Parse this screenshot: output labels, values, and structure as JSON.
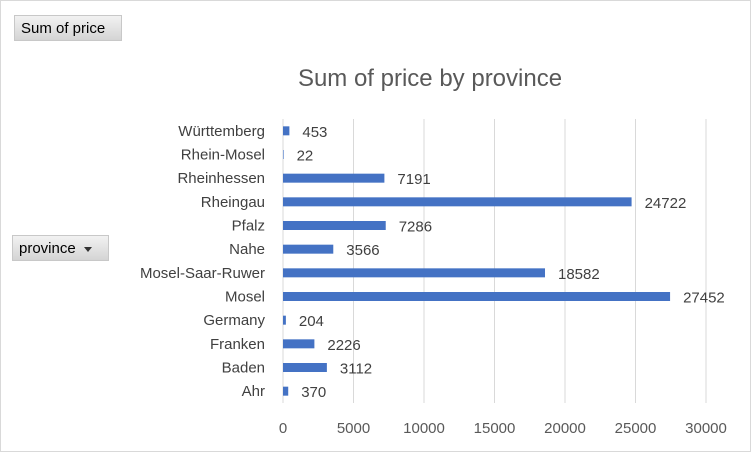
{
  "buttons": {
    "value_field": "Sum of price",
    "row_field": "province"
  },
  "chart_data": {
    "type": "bar",
    "orientation": "horizontal",
    "title": "Sum of price by province",
    "categories": [
      "Württemberg",
      "Rhein-Mosel",
      "Rheinhessen",
      "Rheingau",
      "Pfalz",
      "Nahe",
      "Mosel-Saar-Ruwer",
      "Mosel",
      "Germany",
      "Franken",
      "Baden",
      "Ahr"
    ],
    "values": [
      453,
      22,
      7191,
      24722,
      7286,
      3566,
      18582,
      27452,
      204,
      2226,
      3112,
      370
    ],
    "xlim": [
      0,
      30000
    ],
    "xticks": [
      0,
      5000,
      10000,
      15000,
      20000,
      25000,
      30000
    ],
    "grid": true,
    "bar_color": "#4472c4",
    "data_labels": true
  }
}
